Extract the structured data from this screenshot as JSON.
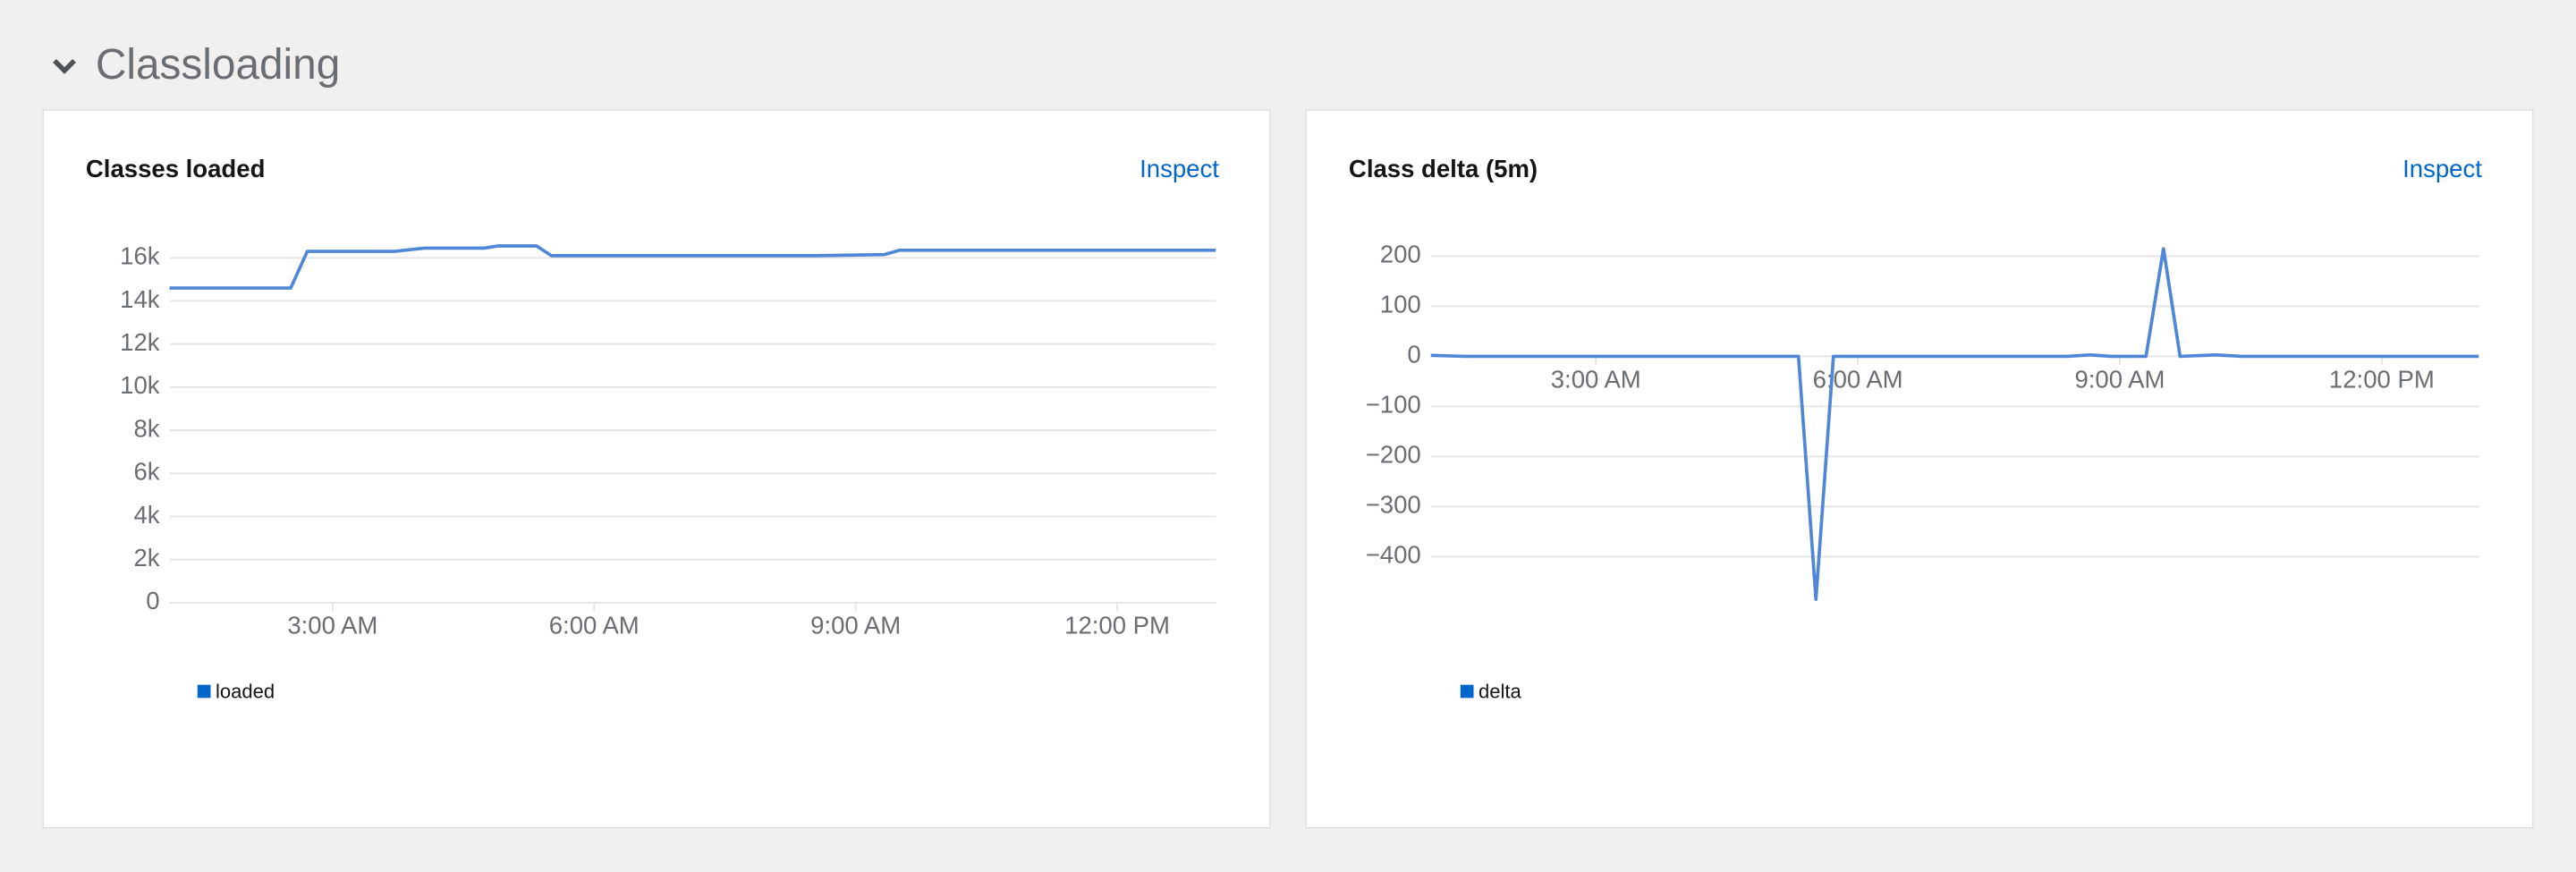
{
  "section_title": "Classloading",
  "chart_data": [
    {
      "type": "line",
      "title": "Classes loaded",
      "action": "Inspect",
      "x": [
        1.13,
        2.52,
        2.71,
        3.71,
        4.05,
        4.74,
        4.89,
        5.34,
        5.51,
        8.54,
        9.33,
        9.5,
        13.13
      ],
      "series": [
        {
          "name": "loaded",
          "color": "#4f86d6",
          "values": [
            14600,
            14600,
            16300,
            16300,
            16450,
            16450,
            16550,
            16550,
            16100,
            16100,
            16150,
            16350,
            16350
          ]
        }
      ],
      "xlim": [
        1.13,
        13.13
      ],
      "xticks": [
        {
          "value": 3,
          "label": "3:00 AM"
        },
        {
          "value": 6,
          "label": "6:00 AM"
        },
        {
          "value": 9,
          "label": "9:00 AM"
        },
        {
          "value": 12,
          "label": "12:00 PM"
        }
      ],
      "ylim": [
        0,
        16800
      ],
      "yticks": [
        0,
        {
          "value": 2000,
          "label": "2k"
        },
        {
          "value": 4000,
          "label": "4k"
        },
        {
          "value": 6000,
          "label": "6k"
        },
        {
          "value": 8000,
          "label": "8k"
        },
        {
          "value": 10000,
          "label": "10k"
        },
        {
          "value": 12000,
          "label": "12k"
        },
        {
          "value": 14000,
          "label": "14k"
        },
        {
          "value": 16000,
          "label": "16k"
        }
      ],
      "grid": true
    },
    {
      "type": "line",
      "title": "Class delta (5m)",
      "action": "Inspect",
      "x": [
        1.11,
        1.5,
        5.0,
        5.32,
        5.52,
        5.72,
        6.0,
        8.4,
        8.66,
        8.9,
        9.3,
        9.5,
        9.69,
        10.1,
        10.4,
        13.11
      ],
      "series": [
        {
          "name": "delta",
          "color": "#4f86d6",
          "values": [
            2,
            0,
            0,
            0,
            -485,
            0,
            0,
            0,
            3,
            0,
            0,
            215,
            0,
            3,
            0,
            0
          ]
        }
      ],
      "xlim": [
        1.11,
        13.11
      ],
      "xticks": [
        {
          "value": 3,
          "label": "3:00 AM"
        },
        {
          "value": 6,
          "label": "6:00 AM"
        },
        {
          "value": 9,
          "label": "9:00 AM"
        },
        {
          "value": 12,
          "label": "12:00 PM"
        }
      ],
      "ylim": [
        -500,
        240
      ],
      "yticks": [
        {
          "value": -400,
          "label": "−400"
        },
        {
          "value": -300,
          "label": "−300"
        },
        {
          "value": -200,
          "label": "−200"
        },
        {
          "value": -100,
          "label": "−100"
        },
        0,
        100,
        200
      ],
      "grid": true
    }
  ]
}
